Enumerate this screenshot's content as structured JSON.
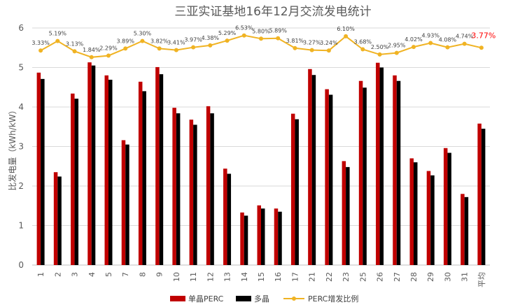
{
  "chart_data": {
    "type": "bar",
    "title": "三亚实证基地16年12月交流发电统计",
    "ylabel": "比发电量（kWh/kW）",
    "ylim": [
      0,
      6
    ],
    "yticks": [
      0,
      1,
      2,
      3,
      4,
      5,
      6
    ],
    "grid": true,
    "legend_position": "bottom",
    "categories": [
      "1",
      "2",
      "3",
      "4",
      "5",
      "7",
      "8",
      "9",
      "10",
      "11",
      "12",
      "13",
      "14",
      "15",
      "16",
      "17",
      "21",
      "22",
      "23",
      "25",
      "26",
      "27",
      "28",
      "29",
      "30",
      "31",
      "平均"
    ],
    "series": [
      {
        "name": "单晶PERC",
        "color": "#c00000",
        "values": [
          4.87,
          2.35,
          4.34,
          5.13,
          4.8,
          3.16,
          4.64,
          5.01,
          3.98,
          3.68,
          4.02,
          2.44,
          1.33,
          1.51,
          1.43,
          3.83,
          4.96,
          4.45,
          2.63,
          4.66,
          5.12,
          4.8,
          2.7,
          2.38,
          2.96,
          1.8,
          3.58
        ]
      },
      {
        "name": "多晶",
        "color": "#000000",
        "values": [
          4.71,
          2.24,
          4.21,
          5.05,
          4.69,
          3.05,
          4.4,
          4.83,
          3.84,
          3.55,
          3.84,
          2.31,
          1.25,
          1.43,
          1.35,
          3.69,
          4.81,
          4.31,
          2.48,
          4.49,
          5.0,
          4.66,
          2.6,
          2.27,
          2.84,
          1.72,
          3.45
        ]
      },
      {
        "name": "PERC增发比例",
        "color": "#f0b323",
        "type": "line",
        "labels": [
          "3.33%",
          "5.19%",
          "3.13%",
          "1.84%",
          "2.29%",
          "3.89%",
          "5.30%",
          "3.82%",
          "3.41%",
          "3.97%",
          "4.38%",
          "5.29%",
          "6.53%",
          "5.80%",
          "5.89%",
          "3.81%",
          "3.27%",
          "3.24%",
          "6.10%",
          "3.68%",
          "2.50%",
          "2.95%",
          "4.02%",
          "4.93%",
          "4.08%",
          "4.74%",
          "3.77%"
        ],
        "plot_values": [
          5.43,
          5.67,
          5.41,
          5.26,
          5.3,
          5.48,
          5.67,
          5.48,
          5.44,
          5.51,
          5.56,
          5.68,
          5.81,
          5.73,
          5.74,
          5.49,
          5.44,
          5.43,
          5.79,
          5.46,
          5.33,
          5.37,
          5.52,
          5.62,
          5.51,
          5.6,
          5.5
        ]
      }
    ]
  }
}
